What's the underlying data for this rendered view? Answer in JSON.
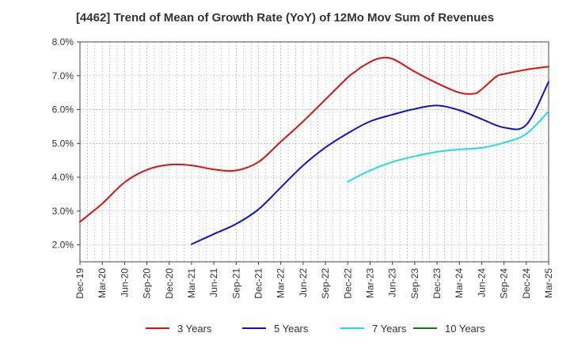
{
  "chart_data": {
    "type": "line",
    "title": "[4462]  Trend of Mean of Growth Rate (YoY) of 12Mo Mov Sum of Revenues",
    "xlabel": "",
    "ylabel": "",
    "ylim": [
      1.5,
      8.0
    ],
    "y_ticks": [
      2.0,
      3.0,
      4.0,
      5.0,
      6.0,
      7.0,
      8.0
    ],
    "y_tick_labels": [
      "2.0%",
      "3.0%",
      "4.0%",
      "5.0%",
      "6.0%",
      "7.0%",
      "8.0%"
    ],
    "x_tick_labels": [
      "Dec-19",
      "Mar-20",
      "Jun-20",
      "Sep-20",
      "Dec-20",
      "Mar-21",
      "Jun-21",
      "Sep-21",
      "Dec-21",
      "Mar-22",
      "Jun-22",
      "Sep-22",
      "Dec-22",
      "Mar-23",
      "Jun-23",
      "Sep-23",
      "Dec-23",
      "Mar-24",
      "Jun-24",
      "Sep-24",
      "Dec-24",
      "Mar-25"
    ],
    "x_range_months": [
      0,
      63
    ],
    "grid": true,
    "legend_position": "bottom",
    "series": [
      {
        "name": "3 Years",
        "color": "#dd1111",
        "x": [
          0,
          3,
          6,
          9,
          12,
          15,
          18,
          21,
          24,
          27,
          30,
          33,
          36,
          37,
          38,
          40,
          42,
          45,
          48,
          51,
          53,
          54,
          56,
          57,
          60,
          63
        ],
        "values": [
          2.68,
          3.22,
          3.85,
          4.22,
          4.37,
          4.35,
          4.23,
          4.2,
          4.45,
          5.05,
          5.65,
          6.3,
          6.95,
          7.12,
          7.28,
          7.5,
          7.5,
          7.12,
          6.78,
          6.5,
          6.47,
          6.6,
          6.98,
          7.05,
          7.18,
          7.27
        ]
      },
      {
        "name": "5 Years",
        "color": "#1111cc",
        "x": [
          15,
          18,
          21,
          24,
          27,
          30,
          33,
          36,
          39,
          42,
          45,
          48,
          51,
          54,
          57,
          60,
          63
        ],
        "values": [
          2.02,
          2.32,
          2.62,
          3.05,
          3.7,
          4.35,
          4.88,
          5.3,
          5.65,
          5.85,
          6.02,
          6.12,
          5.98,
          5.72,
          5.47,
          5.55,
          6.82
        ]
      },
      {
        "name": "7 Years",
        "color": "#22dddd",
        "x": [
          36,
          39,
          42,
          45,
          48,
          51,
          54,
          57,
          60,
          63
        ],
        "values": [
          3.87,
          4.2,
          4.45,
          4.62,
          4.75,
          4.82,
          4.87,
          5.02,
          5.28,
          5.95
        ]
      },
      {
        "name": "10 Years",
        "color": "#117711",
        "x": [],
        "values": []
      }
    ]
  }
}
